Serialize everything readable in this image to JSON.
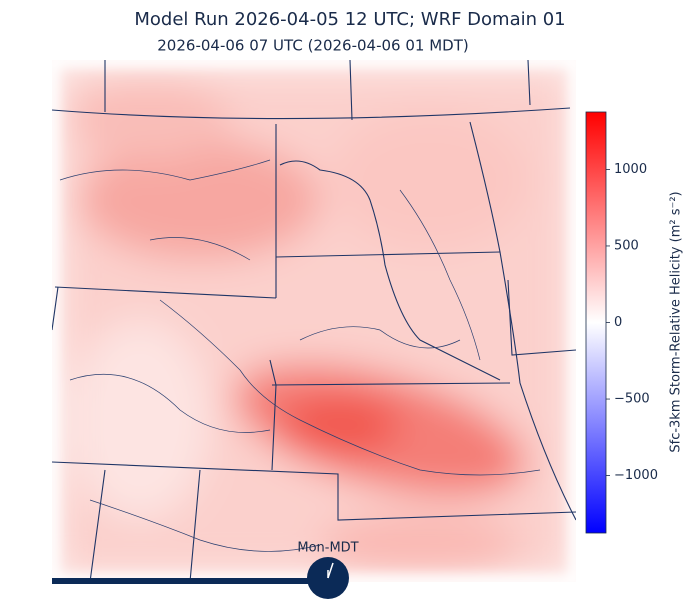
{
  "header": {
    "title": "Model Run 2026-04-05 12 UTC; WRF Domain 01",
    "subtitle": "2026-04-06 07 UTC  (2026-04-06 01 MDT)"
  },
  "map": {
    "timeline_label": "Mon-MDT"
  },
  "colorbar": {
    "label": "Sfc-3km Storm-Relative Helicity (m² s⁻²)",
    "lim": [
      -1375,
      1375
    ],
    "ticks": [
      {
        "value": -1000,
        "label": "−1000"
      },
      {
        "value": -500,
        "label": "−500"
      },
      0,
      500,
      1000
    ],
    "colors": [
      "#0000ff",
      "#ffffff",
      "#ff0000"
    ]
  }
}
